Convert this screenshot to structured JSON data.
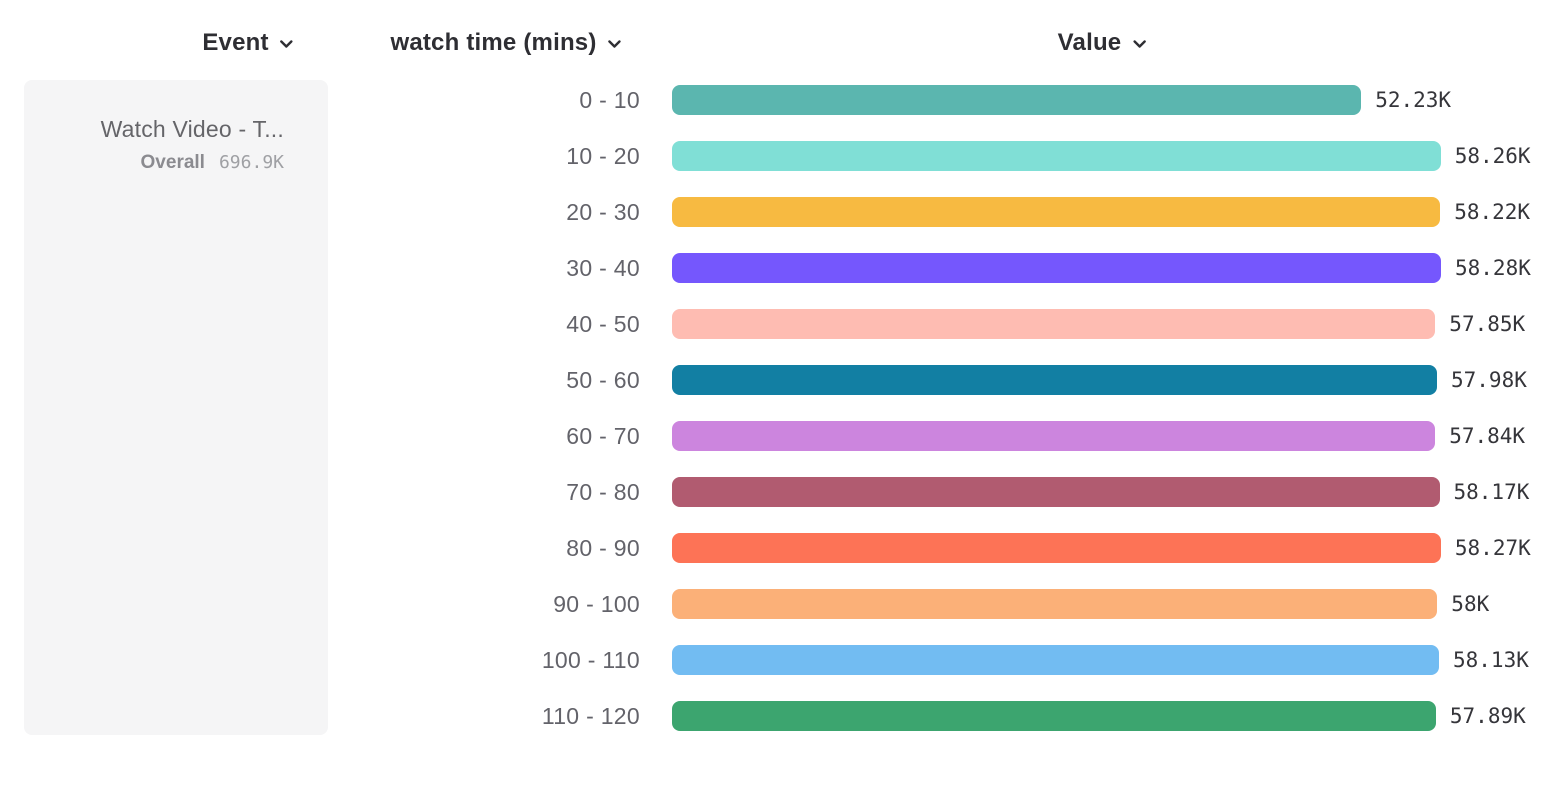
{
  "header": {
    "columns": [
      {
        "label": "Event"
      },
      {
        "label": "watch time (mins)"
      },
      {
        "label": "Value"
      }
    ]
  },
  "event_card": {
    "title": "Watch Video - T...",
    "overall_label": "Overall",
    "overall_value": "696.9K"
  },
  "colors": {
    "card_background": "#f5f5f6",
    "header_text": "#2e2e33",
    "category_text": "#63636a",
    "value_text": "#35353a"
  },
  "chart_data": {
    "type": "bar",
    "orientation": "horizontal",
    "title": "",
    "xlabel": "Value",
    "ylabel": "watch time (mins)",
    "categories": [
      "0 - 10",
      "10 - 20",
      "20 - 30",
      "30 - 40",
      "40 - 50",
      "50 - 60",
      "60 - 70",
      "70 - 80",
      "80 - 90",
      "90 - 100",
      "100 - 110",
      "110 - 120"
    ],
    "values": [
      52230,
      58260,
      58220,
      58280,
      57850,
      57980,
      57840,
      58170,
      58270,
      58000,
      58130,
      57890
    ],
    "value_labels": [
      "52.23K",
      "58.26K",
      "58.22K",
      "58.28K",
      "57.85K",
      "57.98K",
      "57.84K",
      "58.17K",
      "58.27K",
      "58K",
      "58.13K",
      "57.89K"
    ],
    "colors": [
      "#5bb6af",
      "#80dfd6",
      "#f7ba41",
      "#7557fd",
      "#febcb2",
      "#127fa3",
      "#cc85de",
      "#b15b70",
      "#fd7356",
      "#fbb078",
      "#72bcf2",
      "#3ca56f"
    ],
    "xlim": [
      0,
      58280
    ],
    "grid": false,
    "legend": false
  }
}
